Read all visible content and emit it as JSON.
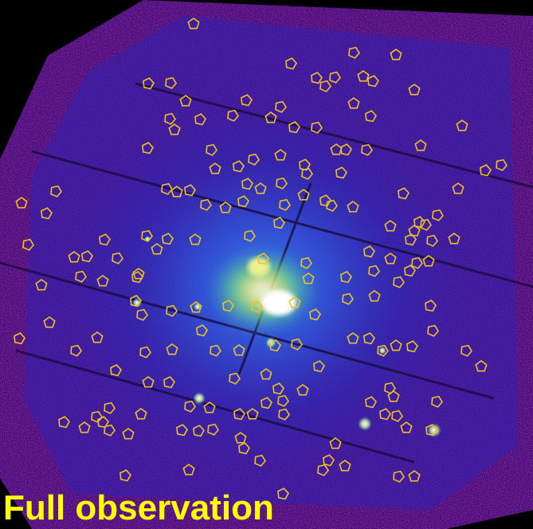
{
  "caption": "Full observation",
  "colors": {
    "background": "#000000",
    "noise_low": "#7a0d88",
    "noise_mid": "#4020c8",
    "diffuse": "#2c5ae0",
    "core_green": "#6ee07a",
    "core_yellow": "#f4f07a",
    "core_white": "#ffffff",
    "source_marker": "#f0c020",
    "caption_text": "#ffff00"
  },
  "icons": {
    "source_marker": "pentagon-outline"
  }
}
